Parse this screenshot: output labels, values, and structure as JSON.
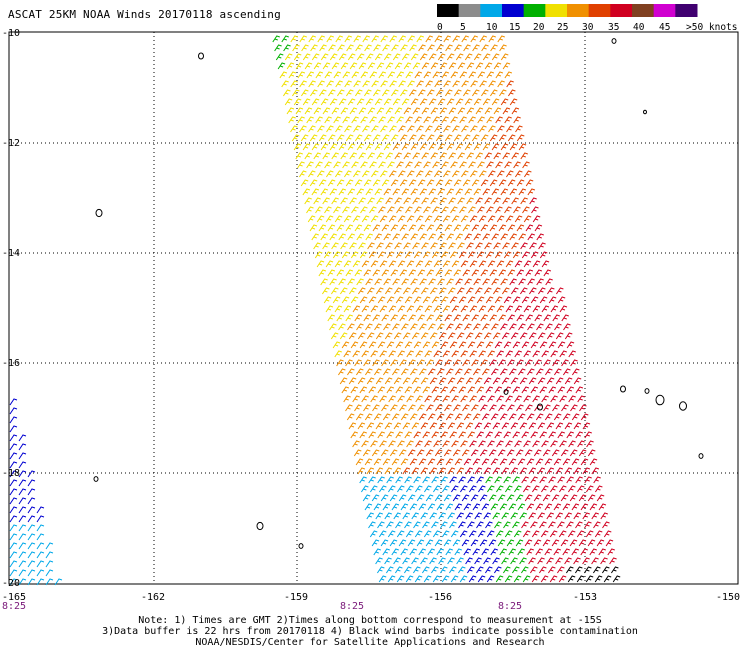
{
  "title": "ASCAT 25KM NOAA Winds 20170118 ascending",
  "legend": {
    "labels": [
      "0",
      "5",
      "10",
      "15",
      "20",
      "25",
      "30",
      "35",
      "40",
      "45",
      ">50 knots"
    ],
    "colors": [
      "#000000",
      "#8c8c8c",
      "#00a8e8",
      "#0000d0",
      "#00b000",
      "#f0e000",
      "#f09000",
      "#e04000",
      "#d00020",
      "#804020",
      "#d000d0",
      "#400070"
    ]
  },
  "axes": {
    "lat_labels": [
      "-10",
      "-12",
      "-14",
      "-16",
      "-18",
      "-20"
    ],
    "lon_labels": [
      "-165",
      "-162",
      "-159",
      "-156",
      "-153",
      "-150"
    ],
    "time_labels": [
      "8:25",
      "8:25",
      "8:25"
    ]
  },
  "notes": [
    "Note: 1) Times are GMT 2)Times along bottom correspond to measurement at -15S",
    "3)Data buffer is 22 hrs from 20170118 4) Black wind barbs indicate possible contamination",
    "NOAA/NESDIS/Center for Satellite Applications and Research"
  ]
}
